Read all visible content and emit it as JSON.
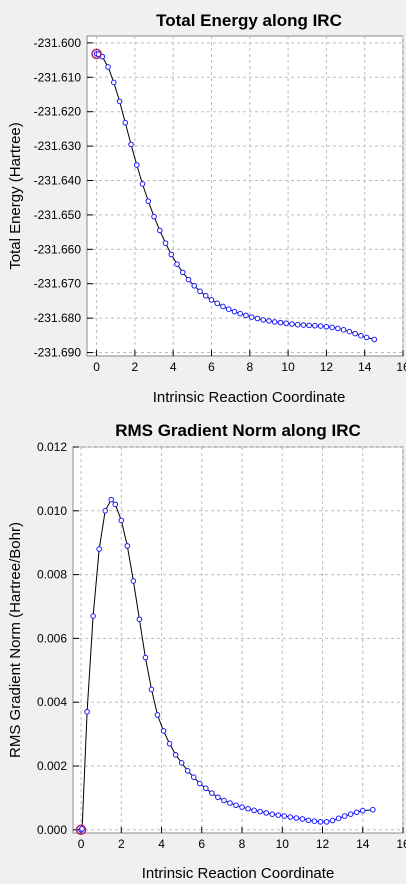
{
  "chart_data": [
    {
      "type": "line",
      "title": "Total Energy along IRC",
      "xlabel": "Intrinsic Reaction Coordinate",
      "ylabel": "Total Energy (Hartree)",
      "xlim": [
        -0.5,
        16
      ],
      "ylim": [
        -231.691,
        -231.598
      ],
      "xticks": [
        0,
        2,
        4,
        6,
        8,
        10,
        12,
        14,
        16
      ],
      "yticks": [
        -231.6,
        -231.61,
        -231.62,
        -231.63,
        -231.64,
        -231.65,
        -231.66,
        -231.67,
        -231.68,
        -231.69
      ],
      "ytick_labels": [
        "-231.600",
        "-231.610",
        "-231.620",
        "-231.630",
        "-231.640",
        "-231.650",
        "-231.660",
        "-231.670",
        "-231.680",
        "-231.690"
      ],
      "grid": true,
      "series_color": "#1a1aff",
      "highlight_color": "#b0206a",
      "highlight_index": 0,
      "series": [
        {
          "x": [
            0.0,
            0.1,
            0.3,
            0.6,
            0.9,
            1.2,
            1.5,
            1.8,
            2.1,
            2.4,
            2.7,
            3.0,
            3.3,
            3.6,
            3.9,
            4.2,
            4.5,
            4.8,
            5.1,
            5.4,
            5.7,
            6.0,
            6.3,
            6.6,
            6.9,
            7.2,
            7.5,
            7.8,
            8.1,
            8.4,
            8.7,
            9.0,
            9.3,
            9.6,
            9.9,
            10.2,
            10.5,
            10.8,
            11.1,
            11.4,
            11.7,
            12.0,
            12.3,
            12.6,
            12.9,
            13.2,
            13.5,
            13.8,
            14.1,
            14.5
          ],
          "y": [
            -231.6032,
            -231.6033,
            -231.604,
            -231.607,
            -231.6115,
            -231.617,
            -231.6232,
            -231.6295,
            -231.6355,
            -231.641,
            -231.646,
            -231.6505,
            -231.6545,
            -231.6582,
            -231.6615,
            -231.6643,
            -231.6667,
            -231.6688,
            -231.6706,
            -231.6722,
            -231.6735,
            -231.6747,
            -231.6757,
            -231.6766,
            -231.6774,
            -231.6781,
            -231.6787,
            -231.6792,
            -231.6797,
            -231.6801,
            -231.6805,
            -231.6808,
            -231.6811,
            -231.6813,
            -231.6815,
            -231.6817,
            -231.6819,
            -231.682,
            -231.6821,
            -231.6822,
            -231.6823,
            -231.6825,
            -231.6827,
            -231.683,
            -231.6834,
            -231.6839,
            -231.6845,
            -231.6851,
            -231.6856,
            -231.6862
          ]
        }
      ]
    },
    {
      "type": "line",
      "title": "RMS Gradient Norm along IRC",
      "xlabel": "Intrinsic Reaction Coordinate",
      "ylabel": "RMS Gradient Norm (Hartree/Bohr)",
      "xlim": [
        -0.4,
        16
      ],
      "ylim": [
        -0.0001,
        0.012
      ],
      "xticks": [
        0,
        2,
        4,
        6,
        8,
        10,
        12,
        14,
        16
      ],
      "yticks": [
        0,
        0.002,
        0.004,
        0.006,
        0.008,
        0.01,
        0.012
      ],
      "ytick_labels": [
        "0.000",
        "0.002",
        "0.004",
        "0.006",
        "0.008",
        "0.010",
        "0.012"
      ],
      "grid": true,
      "series_color": "#1a1aff",
      "highlight_color": "#b0206a",
      "highlight_index": 0,
      "series": [
        {
          "x": [
            0.0,
            0.05,
            0.3,
            0.6,
            0.9,
            1.2,
            1.5,
            1.7,
            2.0,
            2.3,
            2.6,
            2.9,
            3.2,
            3.5,
            3.8,
            4.1,
            4.4,
            4.7,
            5.0,
            5.3,
            5.6,
            5.9,
            6.2,
            6.5,
            6.8,
            7.1,
            7.4,
            7.7,
            8.0,
            8.3,
            8.6,
            8.9,
            9.2,
            9.5,
            9.8,
            10.1,
            10.4,
            10.7,
            11.0,
            11.3,
            11.6,
            11.9,
            12.2,
            12.5,
            12.8,
            13.1,
            13.4,
            13.7,
            14.0,
            14.5
          ],
          "y": [
            0.0,
            3e-05,
            0.0037,
            0.0067,
            0.0088,
            0.01,
            0.01035,
            0.0102,
            0.0097,
            0.0089,
            0.0078,
            0.0066,
            0.0054,
            0.0044,
            0.0036,
            0.0031,
            0.0027,
            0.00235,
            0.0021,
            0.00185,
            0.00165,
            0.00145,
            0.0013,
            0.00115,
            0.00102,
            0.00092,
            0.00084,
            0.00077,
            0.00071,
            0.00066,
            0.00061,
            0.00057,
            0.00053,
            0.00049,
            0.00046,
            0.00043,
            0.0004,
            0.00037,
            0.00034,
            0.0003,
            0.00027,
            0.00025,
            0.00025,
            0.00029,
            0.00036,
            0.00043,
            0.00049,
            0.00055,
            0.0006,
            0.00063
          ]
        }
      ]
    }
  ]
}
